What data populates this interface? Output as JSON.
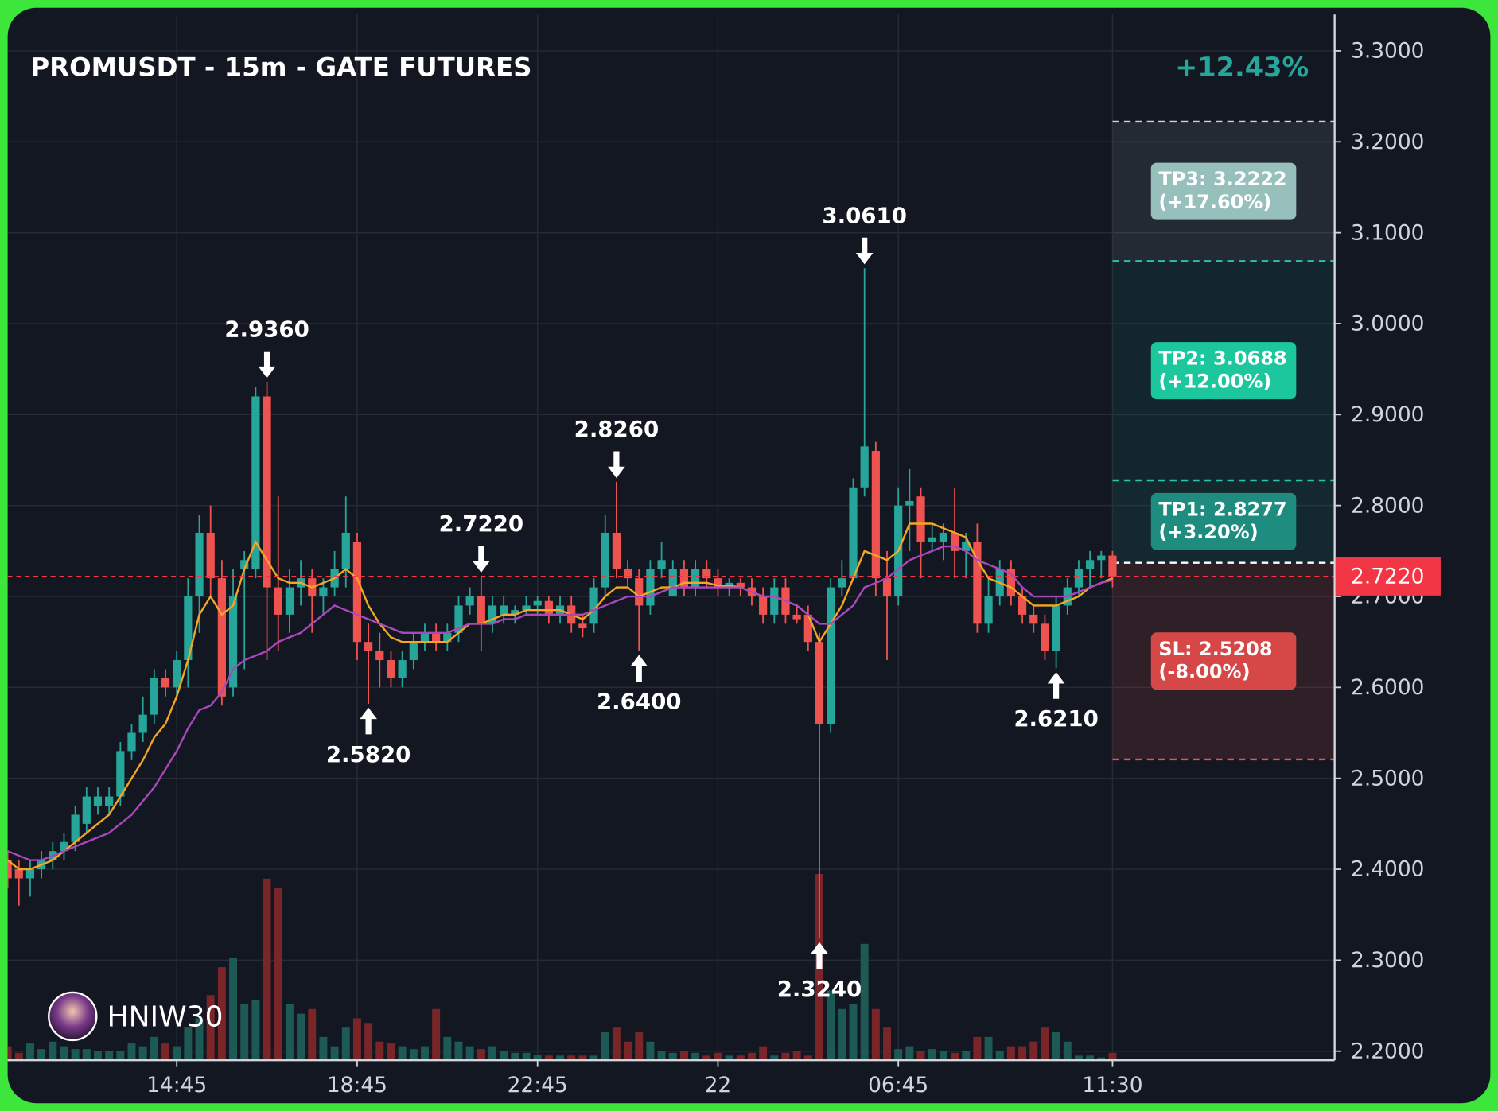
{
  "chart_data": {
    "type": "candlestick",
    "title": "PROMUSDT - 15m - GATE FUTURES",
    "change_label": "+12.43%",
    "watermark": "HNIW30",
    "grid": true,
    "up_color": "#26a69a",
    "down_color": "#ef5350",
    "volume_up_color": "#1d5a55",
    "volume_down_color": "#7a2629",
    "xlim": [
      0,
      117.7
    ],
    "xticks": [
      {
        "value": 15,
        "label": "14:45"
      },
      {
        "value": 31,
        "label": "18:45"
      },
      {
        "value": 47,
        "label": "22:45"
      },
      {
        "value": 63,
        "label": "22"
      },
      {
        "value": 79,
        "label": "06:45"
      },
      {
        "value": 98,
        "label": "11:30"
      }
    ],
    "ylim": [
      2.19,
      3.34
    ],
    "yticks": [
      {
        "value": 2.2,
        "label": "2.2000"
      },
      {
        "value": 2.3,
        "label": "2.3000"
      },
      {
        "value": 2.4,
        "label": "2.4000"
      },
      {
        "value": 2.5,
        "label": "2.5000"
      },
      {
        "value": 2.6,
        "label": "2.6000"
      },
      {
        "value": 2.7,
        "label": "2.7000"
      },
      {
        "value": 2.8,
        "label": "2.8000"
      },
      {
        "value": 2.9,
        "label": "2.9000"
      },
      {
        "value": 3.0,
        "label": "3.0000"
      },
      {
        "value": 3.1,
        "label": "3.1000"
      },
      {
        "value": 3.2,
        "label": "3.2000"
      },
      {
        "value": 3.3,
        "label": "3.3000"
      }
    ],
    "open": [
      2.41,
      2.4,
      2.39,
      2.4,
      2.41,
      2.42,
      2.43,
      2.45,
      2.47,
      2.47,
      2.48,
      2.53,
      2.55,
      2.57,
      2.61,
      2.6,
      2.63,
      2.7,
      2.77,
      2.72,
      2.6,
      2.73,
      2.73,
      2.92,
      2.71,
      2.68,
      2.71,
      2.72,
      2.7,
      2.71,
      2.73,
      2.76,
      2.65,
      2.64,
      2.63,
      2.61,
      2.63,
      2.65,
      2.66,
      2.65,
      2.66,
      2.69,
      2.7,
      2.67,
      2.68,
      2.68,
      2.685,
      2.69,
      2.695,
      2.68,
      2.69,
      2.67,
      2.67,
      2.71,
      2.77,
      2.73,
      2.72,
      2.69,
      2.73,
      2.7,
      2.73,
      2.71,
      2.73,
      2.72,
      2.71,
      2.715,
      2.71,
      2.7,
      2.68,
      2.71,
      2.68,
      2.68,
      2.65,
      2.56,
      2.71,
      2.72,
      2.82,
      2.86,
      2.72,
      2.7,
      2.8,
      2.81,
      2.76,
      2.76,
      2.77,
      2.75,
      2.76,
      2.67,
      2.7,
      2.73,
      2.7,
      2.68,
      2.67,
      2.64,
      2.69,
      2.71,
      2.73,
      2.74,
      2.745
    ],
    "high": [
      2.42,
      2.41,
      2.41,
      2.42,
      2.43,
      2.44,
      2.47,
      2.49,
      2.49,
      2.49,
      2.54,
      2.56,
      2.59,
      2.62,
      2.62,
      2.64,
      2.72,
      2.79,
      2.8,
      2.74,
      2.73,
      2.75,
      2.93,
      2.936,
      2.81,
      2.73,
      2.74,
      2.73,
      2.72,
      2.75,
      2.81,
      2.77,
      2.67,
      2.66,
      2.64,
      2.64,
      2.66,
      2.67,
      2.67,
      2.67,
      2.7,
      2.71,
      2.722,
      2.7,
      2.7,
      2.69,
      2.7,
      2.7,
      2.7,
      2.7,
      2.7,
      2.68,
      2.72,
      2.79,
      2.826,
      2.74,
      2.73,
      2.74,
      2.76,
      2.74,
      2.74,
      2.74,
      2.74,
      2.73,
      2.72,
      2.72,
      2.72,
      2.71,
      2.72,
      2.72,
      2.69,
      2.69,
      2.66,
      2.72,
      2.74,
      2.83,
      3.061,
      2.87,
      2.75,
      2.82,
      2.84,
      2.82,
      2.78,
      2.78,
      2.82,
      2.77,
      2.78,
      2.72,
      2.74,
      2.74,
      2.71,
      2.69,
      2.68,
      2.7,
      2.72,
      2.74,
      2.75,
      2.75,
      2.75
    ],
    "low": [
      2.38,
      2.36,
      2.37,
      2.39,
      2.4,
      2.41,
      2.42,
      2.44,
      2.46,
      2.46,
      2.47,
      2.52,
      2.54,
      2.56,
      2.59,
      2.59,
      2.6,
      2.66,
      2.7,
      2.58,
      2.59,
      2.62,
      2.72,
      2.63,
      2.64,
      2.66,
      2.69,
      2.66,
      2.68,
      2.7,
      2.71,
      2.63,
      2.582,
      2.6,
      2.6,
      2.6,
      2.62,
      2.64,
      2.64,
      2.64,
      2.65,
      2.68,
      2.64,
      2.66,
      2.67,
      2.67,
      2.68,
      2.68,
      2.67,
      2.67,
      2.66,
      2.655,
      2.66,
      2.7,
      2.72,
      2.71,
      2.64,
      2.68,
      2.72,
      2.7,
      2.7,
      2.7,
      2.71,
      2.7,
      2.7,
      2.7,
      2.69,
      2.67,
      2.67,
      2.67,
      2.67,
      2.64,
      2.324,
      2.55,
      2.7,
      2.72,
      2.81,
      2.7,
      2.63,
      2.69,
      2.75,
      2.72,
      2.75,
      2.74,
      2.72,
      2.72,
      2.66,
      2.66,
      2.69,
      2.69,
      2.67,
      2.66,
      2.63,
      2.621,
      2.68,
      2.7,
      2.71,
      2.72,
      2.71
    ],
    "close": [
      2.39,
      2.39,
      2.4,
      2.41,
      2.42,
      2.43,
      2.46,
      2.48,
      2.48,
      2.48,
      2.53,
      2.55,
      2.57,
      2.61,
      2.6,
      2.63,
      2.7,
      2.77,
      2.72,
      2.59,
      2.7,
      2.74,
      2.92,
      2.71,
      2.68,
      2.71,
      2.72,
      2.7,
      2.71,
      2.73,
      2.77,
      2.65,
      2.64,
      2.63,
      2.61,
      2.63,
      2.65,
      2.66,
      2.65,
      2.66,
      2.69,
      2.7,
      2.67,
      2.69,
      2.69,
      2.685,
      2.69,
      2.695,
      2.68,
      2.69,
      2.67,
      2.665,
      2.71,
      2.77,
      2.73,
      2.72,
      2.69,
      2.73,
      2.74,
      2.73,
      2.71,
      2.73,
      2.72,
      2.71,
      2.715,
      2.71,
      2.7,
      2.68,
      2.71,
      2.68,
      2.675,
      2.65,
      2.56,
      2.71,
      2.72,
      2.82,
      2.865,
      2.72,
      2.7,
      2.8,
      2.805,
      2.76,
      2.765,
      2.77,
      2.75,
      2.76,
      2.67,
      2.7,
      2.73,
      2.7,
      2.68,
      2.67,
      2.64,
      2.69,
      2.71,
      2.73,
      2.74,
      2.745,
      2.722
    ],
    "volume": [
      15,
      8,
      18,
      12,
      20,
      15,
      12,
      12,
      10,
      10,
      10,
      18,
      15,
      25,
      18,
      15,
      35,
      45,
      70,
      100,
      110,
      60,
      65,
      195,
      185,
      60,
      50,
      55,
      25,
      15,
      35,
      45,
      40,
      20,
      18,
      15,
      12,
      15,
      55,
      25,
      20,
      15,
      12,
      15,
      10,
      8,
      8,
      6,
      5,
      5,
      5,
      5,
      5,
      30,
      35,
      20,
      30,
      20,
      10,
      8,
      10,
      8,
      5,
      8,
      5,
      5,
      8,
      15,
      5,
      8,
      10,
      5,
      200,
      75,
      55,
      60,
      125,
      55,
      35,
      12,
      15,
      10,
      12,
      10,
      8,
      10,
      25,
      25,
      10,
      15,
      15,
      20,
      35,
      30,
      20,
      5,
      5,
      3,
      8
    ],
    "moving_averages": [
      {
        "color": "#f5a623",
        "values": [
          2.41,
          2.4,
          2.4,
          2.405,
          2.41,
          2.42,
          2.43,
          2.44,
          2.45,
          2.46,
          2.48,
          2.5,
          2.52,
          2.545,
          2.56,
          2.59,
          2.63,
          2.68,
          2.7,
          2.68,
          2.69,
          2.73,
          2.76,
          2.74,
          2.72,
          2.715,
          2.715,
          2.71,
          2.715,
          2.72,
          2.73,
          2.72,
          2.69,
          2.67,
          2.655,
          2.65,
          2.65,
          2.65,
          2.65,
          2.65,
          2.66,
          2.67,
          2.67,
          2.675,
          2.68,
          2.68,
          2.685,
          2.685,
          2.685,
          2.685,
          2.68,
          2.675,
          2.685,
          2.7,
          2.71,
          2.71,
          2.7,
          2.705,
          2.71,
          2.71,
          2.715,
          2.715,
          2.715,
          2.712,
          2.712,
          2.71,
          2.705,
          2.7,
          2.7,
          2.695,
          2.69,
          2.68,
          2.65,
          2.67,
          2.69,
          2.72,
          2.75,
          2.745,
          2.74,
          2.75,
          2.78,
          2.78,
          2.78,
          2.775,
          2.77,
          2.765,
          2.74,
          2.72,
          2.715,
          2.71,
          2.7,
          2.69,
          2.69,
          2.69,
          2.695,
          2.7,
          2.71,
          2.715,
          2.72
        ]
      },
      {
        "color": "#ab47bc",
        "values": [
          2.42,
          2.415,
          2.41,
          2.41,
          2.415,
          2.42,
          2.425,
          2.43,
          2.435,
          2.44,
          2.45,
          2.46,
          2.475,
          2.49,
          2.51,
          2.53,
          2.555,
          2.575,
          2.58,
          2.595,
          2.62,
          2.63,
          2.635,
          2.64,
          2.65,
          2.655,
          2.66,
          2.67,
          2.68,
          2.69,
          2.685,
          2.68,
          2.675,
          2.67,
          2.665,
          2.66,
          2.66,
          2.66,
          2.66,
          2.66,
          2.665,
          2.67,
          2.67,
          2.67,
          2.675,
          2.675,
          2.68,
          2.68,
          2.68,
          2.68,
          2.68,
          2.68,
          2.685,
          2.69,
          2.695,
          2.7,
          2.7,
          2.7,
          2.705,
          2.71,
          2.71,
          2.71,
          2.71,
          2.71,
          2.71,
          2.71,
          2.705,
          2.7,
          2.7,
          2.695,
          2.69,
          2.68,
          2.67,
          2.67,
          2.68,
          2.69,
          2.71,
          2.715,
          2.72,
          2.73,
          2.74,
          2.745,
          2.75,
          2.755,
          2.755,
          2.75,
          2.74,
          2.735,
          2.73,
          2.725,
          2.71,
          2.7,
          2.7,
          2.7,
          2.7,
          2.705,
          2.71,
          2.715,
          2.718
        ]
      }
    ],
    "annotations": [
      {
        "x": 23,
        "value": 2.936,
        "label": "2.9360",
        "position": "above"
      },
      {
        "x": 32,
        "value": 2.582,
        "label": "2.5820",
        "position": "below"
      },
      {
        "x": 42,
        "value": 2.722,
        "label": "2.7220",
        "position": "above"
      },
      {
        "x": 54,
        "value": 2.826,
        "label": "2.8260",
        "position": "above"
      },
      {
        "x": 56,
        "value": 2.64,
        "label": "2.6400",
        "position": "below"
      },
      {
        "x": 72,
        "value": 2.324,
        "label": "2.3240",
        "position": "below"
      },
      {
        "x": 76,
        "value": 3.061,
        "label": "3.0610",
        "position": "above"
      },
      {
        "x": 93,
        "value": 2.621,
        "label": "2.6210",
        "position": "below"
      }
    ],
    "entry": 2.737,
    "entry_color": "#ffffff",
    "levels": [
      {
        "kind": "tp",
        "label": "TP3: 3.2222",
        "sublabel": "(+17.60%)",
        "value": 3.2222,
        "color": "#97bfbb",
        "line_color": "#c9d4d6",
        "zone_color": "rgba(130,140,150,0.16)"
      },
      {
        "kind": "tp",
        "label": "TP2: 3.0688",
        "sublabel": "(+12.00%)",
        "value": 3.0688,
        "color": "#1cc79d",
        "line_color": "#26c6a6",
        "zone_color": "rgba(20,140,130,0.13)"
      },
      {
        "kind": "tp",
        "label": "TP1: 2.8277",
        "sublabel": "(+3.20%)",
        "value": 2.8277,
        "color": "#1e8c7f",
        "line_color": "#26c6a6",
        "zone_color": "rgba(20,140,130,0.15)"
      },
      {
        "kind": "sl",
        "label": "SL: 2.5208",
        "sublabel": "(-8.00%)",
        "value": 2.5208,
        "color": "#d64848",
        "line_color": "#ef5350",
        "zone_color": "rgba(239,83,80,0.13)"
      }
    ],
    "last_price": {
      "value": 2.722,
      "label": "2.7220"
    },
    "last_price_color": "#f23645"
  }
}
